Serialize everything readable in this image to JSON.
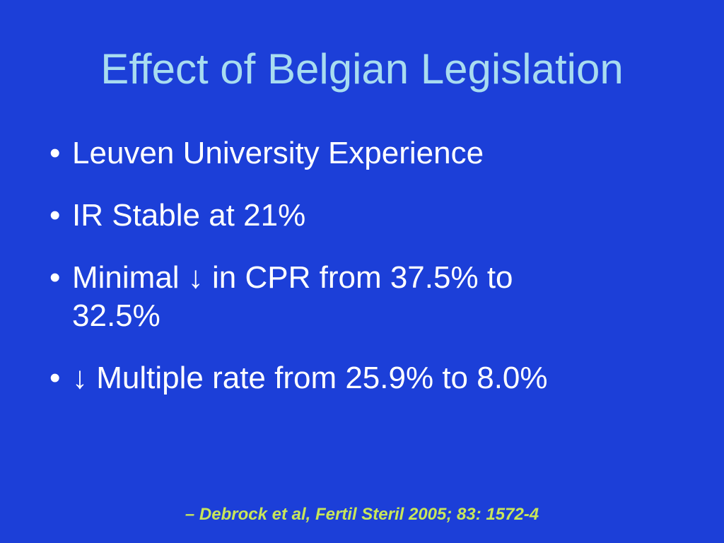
{
  "slide": {
    "title": "Effect of Belgian Legislation",
    "bullets": [
      "Leuven University Experience",
      "IR Stable at 21%",
      "Minimal ↓ in CPR from 37.5% to 32.5%",
      "↓ Multiple rate from 25.9% to 8.0%"
    ],
    "citation": "– Debrock et al, Fertil Steril 2005; 83: 1572-4"
  }
}
